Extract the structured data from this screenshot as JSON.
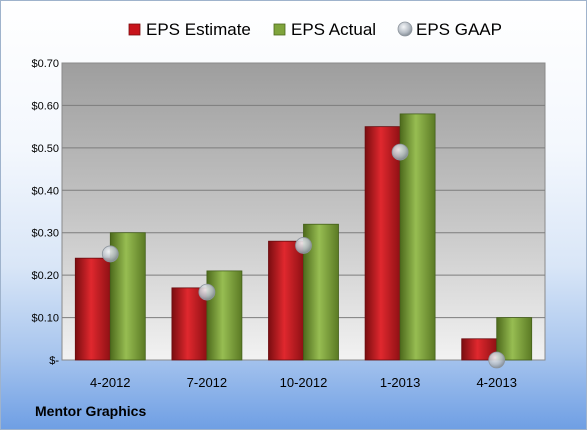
{
  "chart_data": {
    "type": "bar",
    "categories": [
      "4-2012",
      "7-2012",
      "10-2012",
      "1-2013",
      "4-2013"
    ],
    "series": [
      {
        "name": "EPS Estimate",
        "kind": "bar",
        "color": "#c8141c",
        "values": [
          0.24,
          0.17,
          0.28,
          0.55,
          0.05
        ]
      },
      {
        "name": "EPS Actual",
        "kind": "bar",
        "color": "#7fa43c",
        "values": [
          0.3,
          0.21,
          0.32,
          0.58,
          0.1
        ]
      },
      {
        "name": "EPS GAAP",
        "kind": "marker",
        "color": "#b8bfc6",
        "values": [
          0.25,
          0.16,
          0.27,
          0.49,
          0.0
        ]
      }
    ],
    "y_ticks": [
      "$-",
      "$0.10",
      "$0.20",
      "$0.30",
      "$0.40",
      "$0.50",
      "$0.60",
      "$0.70"
    ],
    "ylim": [
      0,
      0.7
    ],
    "grid": true,
    "legend_position": "top"
  },
  "footer": {
    "company": "Mentor Graphics"
  }
}
